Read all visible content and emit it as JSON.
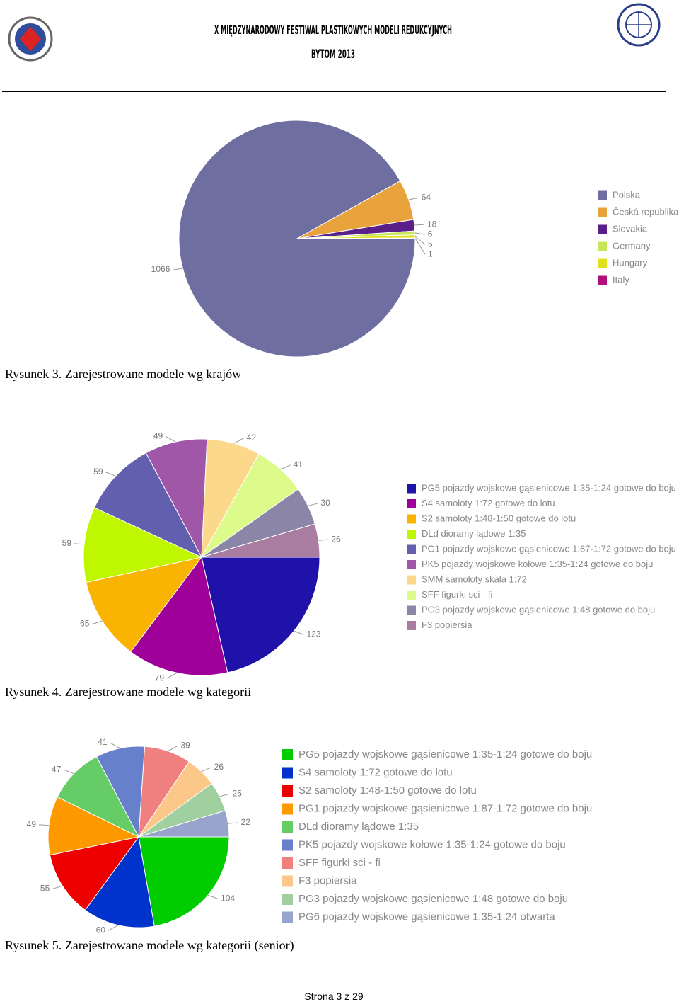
{
  "header": {
    "title": "X MIĘDZYNARODOWY FESTIWAL PLASTIKOWYCH MODELI REDUKCYJNYCH",
    "subtitle": "BYTOM 2013"
  },
  "chart_data": [
    {
      "type": "pie",
      "caption": "Rysunek 3. Zarejestrowane modele wg krajów",
      "legend": "right",
      "categories": [
        "Polska",
        "Česká republika",
        "Slovakia",
        "Germany",
        "Hungary",
        "Italy"
      ],
      "values": [
        1066,
        64,
        18,
        6,
        5,
        1
      ],
      "colors": [
        "#6e6ea0",
        "#e8a33d",
        "#5b1f8a",
        "#c8e65a",
        "#e0e020",
        "#b0107a"
      ]
    },
    {
      "type": "pie",
      "caption": "Rysunek 4. Zarejestrowane modele wg kategorii",
      "legend": "right",
      "categories": [
        "PG5 pojazdy wojskowe gąsienicowe 1:35-1:24 gotowe do boju",
        "S4 samoloty 1:72 gotowe do lotu",
        "S2 samoloty 1:48-1:50 gotowe do lotu",
        "DLd dioramy lądowe 1:35",
        "PG1 pojazdy wojskowe gąsienicowe 1:87-1:72 gotowe do boju",
        "PK5 pojazdy wojskowe kołowe 1:35-1:24 gotowe do boju",
        "SMM samoloty skala 1:72",
        "SFF figurki sci - fi",
        "PG3 pojazdy wojskowe gąsienicowe 1:48 gotowe do boju",
        "F3 popiersia"
      ],
      "values": [
        123,
        79,
        65,
        59,
        59,
        49,
        42,
        41,
        30,
        26
      ],
      "colors": [
        "#1e12a8",
        "#a0009a",
        "#f8b400",
        "#bff700",
        "#6260ae",
        "#a057a8",
        "#fbd88a",
        "#dcfb8a",
        "#8b85a8",
        "#a87da0"
      ]
    },
    {
      "type": "pie",
      "caption": "Rysunek 5. Zarejestrowane modele wg kategorii (senior)",
      "legend": "right",
      "categories": [
        "PG5 pojazdy wojskowe gąsienicowe 1:35-1:24 gotowe do boju",
        "S4 samoloty 1:72 gotowe do lotu",
        "S2 samoloty 1:48-1:50 gotowe do lotu",
        "PG1 pojazdy wojskowe gąsienicowe 1:87-1:72 gotowe do boju",
        "DLd dioramy lądowe 1:35",
        "PK5 pojazdy wojskowe kołowe 1:35-1:24 gotowe do boju",
        "SFF figurki sci - fi",
        "F3 popiersia",
        "PG3 pojazdy wojskowe gąsienicowe 1:48 gotowe do boju",
        "PG6 pojazdy wojskowe gąsienicowe 1:35-1:24 otwarta"
      ],
      "values": [
        104,
        60,
        55,
        49,
        47,
        41,
        39,
        26,
        25,
        22
      ],
      "colors": [
        "#00cc00",
        "#0033cc",
        "#ee0000",
        "#ff9900",
        "#66cc66",
        "#6680cc",
        "#f08080",
        "#fcc88a",
        "#a0d0a0",
        "#99a4cc"
      ]
    }
  ],
  "footer": "Strona 3 z 29"
}
